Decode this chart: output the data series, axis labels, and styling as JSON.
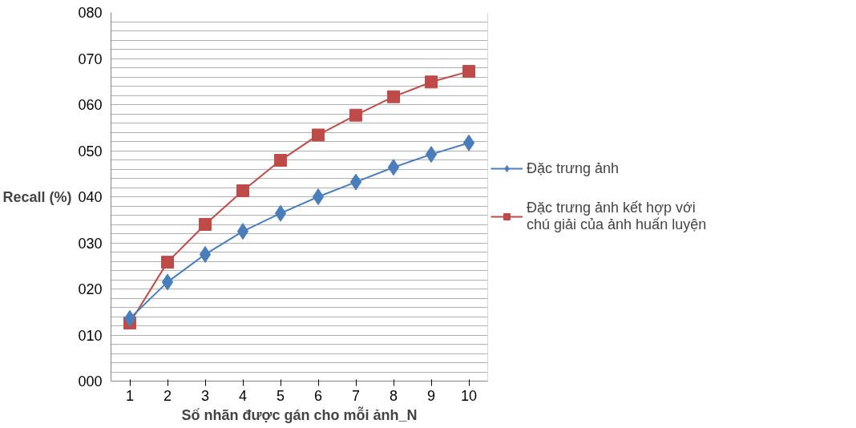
{
  "chart_data": {
    "type": "line",
    "xlabel": "Số nhãn được gán cho mỗi ảnh_N",
    "ylabel": "Recall (%)",
    "categories": [
      "1",
      "2",
      "3",
      "4",
      "5",
      "6",
      "7",
      "8",
      "9",
      "10"
    ],
    "ylim": [
      0,
      80
    ],
    "yticks": [
      {
        "value": 0,
        "label": "000"
      },
      {
        "value": 2,
        "label": null
      },
      {
        "value": 4,
        "label": null
      },
      {
        "value": 6,
        "label": null
      },
      {
        "value": 8,
        "label": null
      },
      {
        "value": 10,
        "label": "010"
      },
      {
        "value": 12,
        "label": null
      },
      {
        "value": 14,
        "label": null
      },
      {
        "value": 16,
        "label": null
      },
      {
        "value": 18,
        "label": null
      },
      {
        "value": 20,
        "label": "020"
      },
      {
        "value": 22,
        "label": null
      },
      {
        "value": 24,
        "label": null
      },
      {
        "value": 26,
        "label": null
      },
      {
        "value": 28,
        "label": null
      },
      {
        "value": 30,
        "label": "030"
      },
      {
        "value": 32,
        "label": null
      },
      {
        "value": 34,
        "label": null
      },
      {
        "value": 36,
        "label": null
      },
      {
        "value": 38,
        "label": null
      },
      {
        "value": 40,
        "label": "040"
      },
      {
        "value": 42,
        "label": null
      },
      {
        "value": 44,
        "label": null
      },
      {
        "value": 46,
        "label": null
      },
      {
        "value": 48,
        "label": null
      },
      {
        "value": 50,
        "label": "050"
      },
      {
        "value": 52,
        "label": null
      },
      {
        "value": 54,
        "label": null
      },
      {
        "value": 56,
        "label": null
      },
      {
        "value": 58,
        "label": null
      },
      {
        "value": 60,
        "label": "060"
      },
      {
        "value": 62,
        "label": null
      },
      {
        "value": 64,
        "label": null
      },
      {
        "value": 66,
        "label": null
      },
      {
        "value": 68,
        "label": null
      },
      {
        "value": 70,
        "label": "070"
      },
      {
        "value": 72,
        "label": null
      },
      {
        "value": 74,
        "label": null
      },
      {
        "value": 76,
        "label": null
      },
      {
        "value": 78,
        "label": null
      },
      {
        "value": 80,
        "label": "080"
      }
    ],
    "grid": "y",
    "legend": "right",
    "line_style": "solid",
    "series": [
      {
        "name": "Đặc trưng ảnh",
        "color": "#4a7ebb",
        "marker": "diamond",
        "values": [
          13.6,
          21.5,
          27.5,
          32.5,
          36.4,
          40.0,
          43.2,
          46.4,
          49.2,
          51.7
        ]
      },
      {
        "name": "Đặc trưng ảnh kết hợp với chú giải của ảnh huấn luyện",
        "color": "#be4b48",
        "marker": "square",
        "values": [
          12.6,
          25.8,
          34.0,
          41.3,
          47.9,
          53.4,
          57.7,
          61.7,
          64.9,
          67.2
        ]
      }
    ]
  }
}
